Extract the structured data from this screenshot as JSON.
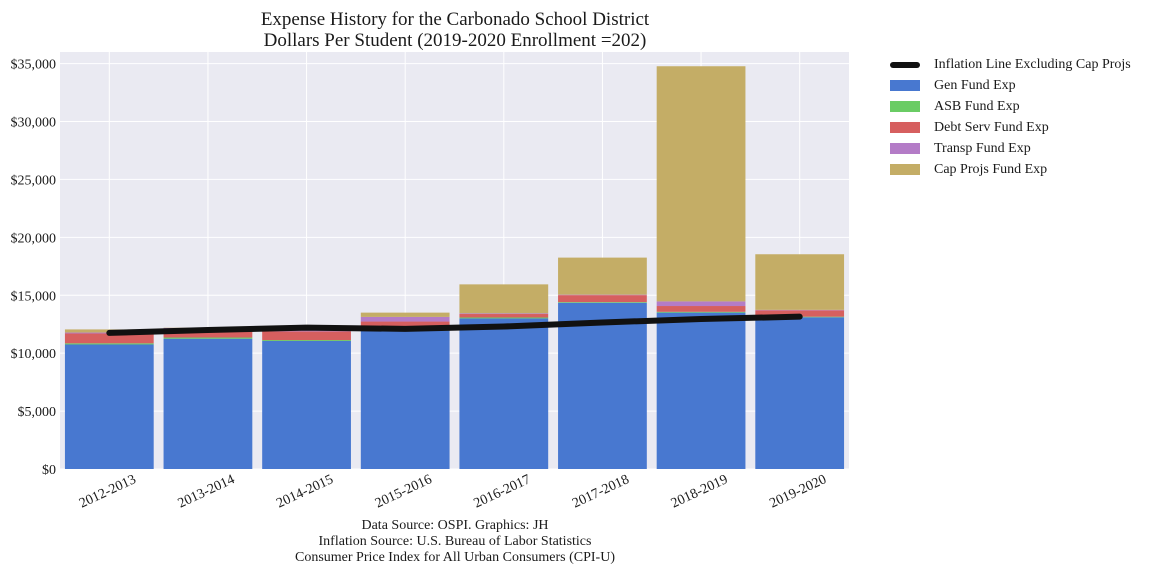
{
  "title": {
    "line1": "Expense History for the Carbonado School District",
    "line2": "Dollars Per Student (2019-2020 Enrollment =202)"
  },
  "source_notes": {
    "line1": "Data Source: OSPI. Graphics: JH",
    "line2": "Inflation Source: U.S. Bureau of Labor Statistics",
    "line3": "Consumer Price Index for All Urban Consumers (CPI-U)"
  },
  "chart_data": {
    "type": "bar",
    "stacked": true,
    "categories": [
      "2012-2013",
      "2013-2014",
      "2014-2015",
      "2015-2016",
      "2016-2017",
      "2017-2018",
      "2018-2019",
      "2019-2020"
    ],
    "series": [
      {
        "name": "Gen Fund Exp",
        "color": "#4878d0",
        "values": [
          10750,
          11250,
          11050,
          11950,
          13000,
          14350,
          13500,
          13100
        ]
      },
      {
        "name": "ASB Fund Exp",
        "color": "#6acc64",
        "values": [
          100,
          100,
          80,
          80,
          80,
          60,
          70,
          50
        ]
      },
      {
        "name": "Debt Serv Fund Exp",
        "color": "#d65f5f",
        "values": [
          850,
          750,
          750,
          700,
          300,
          600,
          500,
          550
        ]
      },
      {
        "name": "Transp Fund Exp",
        "color": "#b47cc7",
        "values": [
          80,
          80,
          80,
          400,
          60,
          40,
          400,
          40
        ]
      },
      {
        "name": "Cap Projs Fund Exp",
        "color": "#c4ad66",
        "values": [
          270,
          20,
          0,
          370,
          2500,
          3200,
          20300,
          4800
        ]
      }
    ],
    "line_series": {
      "name": "Inflation Line Excluding Cap Projs",
      "color": "#111111",
      "values": [
        11750,
        12000,
        12200,
        12100,
        12300,
        12650,
        12950,
        13150
      ]
    },
    "ylim": [
      0,
      36000
    ],
    "yticks": [
      0,
      5000,
      10000,
      15000,
      20000,
      25000,
      30000,
      35000
    ],
    "ytick_labels": [
      "$0",
      "$5,000",
      "$10,000",
      "$15,000",
      "$20,000",
      "$25,000",
      "$30,000",
      "$35,000"
    ],
    "xlabel": "",
    "ylabel": "",
    "grid": true,
    "legend_position": "outside-right-top",
    "background": "#eaeaf2"
  }
}
